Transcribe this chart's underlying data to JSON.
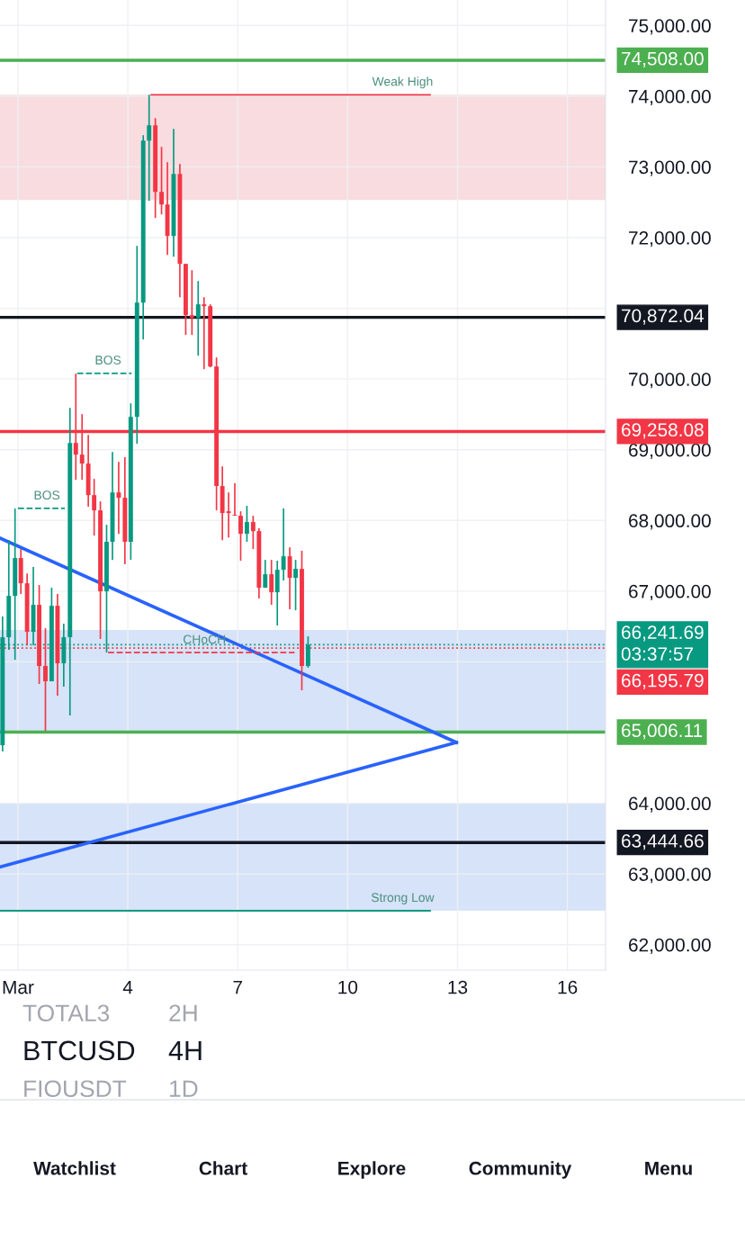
{
  "chart_data": {
    "type": "candlestick",
    "title": "BTCUSD",
    "subtitle": "4H",
    "x": [
      0.58,
      0.75,
      0.92,
      1.08,
      1.25,
      1.42,
      1.58,
      1.75,
      1.92,
      2.08,
      2.25,
      2.42,
      2.58,
      2.75,
      2.92,
      3.08,
      3.25,
      3.42,
      3.58,
      3.75,
      3.92,
      4.08,
      4.25,
      4.42,
      4.58,
      4.75,
      4.92,
      5.08,
      5.25,
      5.42,
      5.58,
      5.75,
      5.92,
      6.08,
      6.25,
      6.42,
      6.58,
      6.75,
      6.92,
      7.08,
      7.25,
      7.42,
      7.58,
      7.75,
      7.92,
      8.08,
      8.25,
      8.42,
      8.58,
      8.75,
      8.92
    ],
    "ohlc": [
      [
        64821,
        66641,
        64732,
        66348
      ],
      [
        66348,
        67722,
        66170,
        66933
      ],
      [
        66933,
        68168,
        66030,
        67468
      ],
      [
        67468,
        67595,
        66959,
        67111
      ],
      [
        67111,
        67251,
        66234,
        66424
      ],
      [
        66424,
        67341,
        66234,
        66806
      ],
      [
        66806,
        67086,
        65687,
        65941
      ],
      [
        65941,
        66475,
        65025,
        65725
      ],
      [
        65725,
        67048,
        65725,
        66793
      ],
      [
        66793,
        66959,
        65521,
        65979
      ],
      [
        65979,
        66539,
        65648,
        66348
      ],
      [
        66348,
        69592,
        65241,
        69096
      ],
      [
        69096,
        70076,
        68575,
        68931
      ],
      [
        68931,
        69503,
        68575,
        68804
      ],
      [
        68804,
        69211,
        68193,
        68358
      ],
      [
        68358,
        68587,
        67786,
        68142
      ],
      [
        68142,
        68269,
        66323,
        66997
      ],
      [
        66997,
        67938,
        66132,
        67697
      ],
      [
        67697,
        68969,
        67442,
        68396
      ],
      [
        68396,
        68829,
        67811,
        68320
      ],
      [
        68320,
        68893,
        67379,
        67697
      ],
      [
        67697,
        69656,
        67442,
        69465
      ],
      [
        69465,
        71883,
        69084,
        71081
      ],
      [
        71081,
        73448,
        70559,
        73371
      ],
      [
        73371,
        74020,
        72519,
        73588
      ],
      [
        73588,
        73689,
        72277,
        72646
      ],
      [
        72646,
        73282,
        72328,
        72468
      ],
      [
        72468,
        73066,
        71755,
        72023
      ],
      [
        72023,
        73537,
        71730,
        72900
      ],
      [
        72900,
        73040,
        71157,
        71628
      ],
      [
        71628,
        71628,
        70623,
        70903
      ],
      [
        70903,
        71539,
        70623,
        70865
      ],
      [
        70865,
        71386,
        70330,
        71056
      ],
      [
        71056,
        71157,
        70140,
        71030
      ],
      [
        71030,
        71056,
        70165,
        70178
      ],
      [
        70178,
        70305,
        68142,
        68486
      ],
      [
        68486,
        68765,
        67722,
        68104
      ],
      [
        68129,
        68396,
        67760,
        68104
      ],
      [
        68078,
        68524,
        68066,
        68066
      ],
      [
        68066,
        68129,
        67430,
        67811
      ],
      [
        67811,
        68206,
        67697,
        67977
      ],
      [
        67977,
        68066,
        67595,
        67849
      ],
      [
        67849,
        67888,
        66895,
        67048
      ],
      [
        67048,
        67442,
        67048,
        67239
      ],
      [
        67239,
        67442,
        66806,
        66984
      ],
      [
        66984,
        67430,
        66514,
        67302
      ],
      [
        67302,
        68168,
        67150,
        67493
      ],
      [
        67493,
        67620,
        66743,
        67188
      ],
      [
        67188,
        67442,
        66730,
        67315
      ],
      [
        67315,
        67570,
        65597,
        65941
      ],
      [
        65941,
        66361,
        65916,
        66242
      ]
    ],
    "colors": [
      "#089981",
      "#089981",
      "#089981",
      "#f23645",
      "#f23645",
      "#089981",
      "#f23645",
      "#f23645",
      "#089981",
      "#f23645",
      "#089981",
      "#089981",
      "#f23645",
      "#f23645",
      "#f23645",
      "#f23645",
      "#f23645",
      "#089981",
      "#089981",
      "#f23645",
      "#f23645",
      "#089981",
      "#089981",
      "#089981",
      "#089981",
      "#f23645",
      "#f23645",
      "#f23645",
      "#089981",
      "#f23645",
      "#f23645",
      "#f23645",
      "#089981",
      "#f23645",
      "#f23645",
      "#f23645",
      "#f23645",
      "#f23645",
      "#f23645",
      "#f23645",
      "#089981",
      "#f23645",
      "#f23645",
      "#089981",
      "#f23645",
      "#089981",
      "#089981",
      "#f23645",
      "#089981",
      "#f23645",
      "#089981"
    ],
    "series": [
      {
        "type": "line",
        "color": "#2962ff",
        "x": [
          0.51,
          12.97
        ],
        "values": [
          67750,
          64860
        ]
      },
      {
        "type": "line",
        "color": "#2962ff",
        "x": [
          0.51,
          12.97
        ],
        "values": [
          63100,
          64860
        ]
      },
      {
        "type": "line",
        "color": "#f23645",
        "line_style": "solid",
        "x": [
          4.64,
          12.25
        ],
        "values": [
          74020,
          74020
        ]
      },
      {
        "type": "line",
        "color": "#089981",
        "line_style": "solid",
        "x": [
          0.51,
          12.25
        ],
        "values": [
          62480,
          62480
        ]
      },
      {
        "type": "line",
        "color": "#089981",
        "line_style": "dashed",
        "x": [
          2.62,
          4.1
        ],
        "values": [
          70080,
          70080
        ]
      },
      {
        "type": "line",
        "color": "#089981",
        "line_style": "dashed",
        "x": [
          1.0,
          2.28
        ],
        "values": [
          68170,
          68170
        ]
      },
      {
        "type": "line",
        "color": "#f23645",
        "line_style": "dashed",
        "x": [
          3.46,
          8.55
        ],
        "values": [
          66130,
          66130
        ]
      }
    ],
    "xlim": [
      0.51,
      17.04
    ],
    "ylim": [
      61640,
      75360
    ],
    "xticks": [
      {
        "value": 1,
        "label": "Mar"
      },
      4,
      7,
      10,
      13,
      16
    ],
    "yticks": [
      {
        "value": 62000,
        "label": "62,000.00"
      },
      {
        "value": 63000,
        "label": "63,000.00"
      },
      {
        "value": 64000,
        "label": "64,000.00"
      },
      {
        "value": 65000,
        "label": null
      },
      {
        "value": 66000,
        "label": null
      },
      {
        "value": 67000,
        "label": "67,000.00"
      },
      {
        "value": 68000,
        "label": "68,000.00"
      },
      {
        "value": 69000,
        "label": "69,000.00"
      },
      {
        "value": 70000,
        "label": "70,000.00"
      },
      {
        "value": 71000,
        "label": null
      },
      {
        "value": 72000,
        "label": "72,000.00"
      },
      {
        "value": 73000,
        "label": "73,000.00"
      },
      {
        "value": 74000,
        "label": "74,000.00"
      },
      {
        "value": 75000,
        "label": "75,000.00"
      }
    ],
    "grid": true,
    "ref_lines": [
      {
        "axis": "y",
        "value": 74508,
        "label": "74,508.00",
        "color": "#4caf50",
        "line_style": "solid"
      },
      {
        "axis": "y",
        "value": 70872.04,
        "label": "70,872.04",
        "color": "#131722",
        "line_style": "solid"
      },
      {
        "axis": "y",
        "value": 69258.08,
        "label": "69,258.08",
        "color": "#f23645",
        "line_style": "solid"
      },
      {
        "axis": "y",
        "value": 66241.69,
        "label": "66,241.69\n03:37:57",
        "color": "#089981",
        "line_style": "dotted"
      },
      {
        "axis": "y",
        "value": 66195.79,
        "label": "66,195.79",
        "color": "#f23645",
        "line_style": "dotted"
      },
      {
        "axis": "y",
        "value": 65006.11,
        "label": "65,006.11",
        "color": "#4caf50",
        "line_style": "solid"
      },
      {
        "axis": "y",
        "value": 63444.66,
        "label": "63,444.66",
        "color": "#131722",
        "line_style": "solid"
      }
    ],
    "bands": [
      {
        "axis": "y",
        "from": 72530,
        "to": 74020,
        "color": "#f8dcdf"
      },
      {
        "axis": "y",
        "from": 65000,
        "to": 66450,
        "color": "#d6e3f8"
      },
      {
        "axis": "y",
        "from": 62480,
        "to": 64000,
        "color": "#d6e3f8"
      }
    ],
    "annotations": [
      {
        "text": "Weak High",
        "x": 11.5,
        "y": 74020
      },
      {
        "text": "Strong Low",
        "x": 11.5,
        "y": 62480
      },
      {
        "text": "BOS",
        "x": 3.46,
        "y": 70080
      },
      {
        "text": "BOS",
        "x": 1.79,
        "y": 68170
      },
      {
        "text": "CHoCH",
        "x": 6.09,
        "y": 66130
      },
      "TOTAL3",
      "2H",
      "FIOUSDT",
      "1D",
      "Watchlist",
      "Chart",
      "Explore",
      "Community",
      "Menu"
    ]
  }
}
